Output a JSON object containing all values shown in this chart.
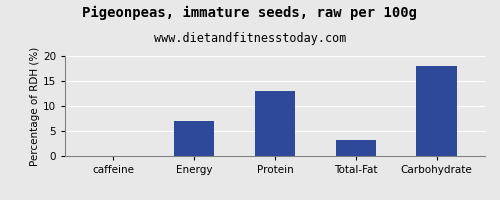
{
  "title": "Pigeonpeas, immature seeds, raw per 100g",
  "subtitle": "www.dietandfitnesstoday.com",
  "categories": [
    "caffeine",
    "Energy",
    "Protein",
    "Total-Fat",
    "Carbohydrate"
  ],
  "values": [
    0,
    7,
    13,
    3.3,
    18
  ],
  "bar_color": "#2e4999",
  "ylabel": "Percentage of RDH (%)",
  "ylim": [
    0,
    20
  ],
  "yticks": [
    0,
    5,
    10,
    15,
    20
  ],
  "title_fontsize": 10,
  "subtitle_fontsize": 8.5,
  "ylabel_fontsize": 7.5,
  "tick_fontsize": 7.5,
  "background_color": "#e8e8e8",
  "plot_bg_color": "#e8e8e8",
  "fig_bg_color": "#e8e8e8"
}
